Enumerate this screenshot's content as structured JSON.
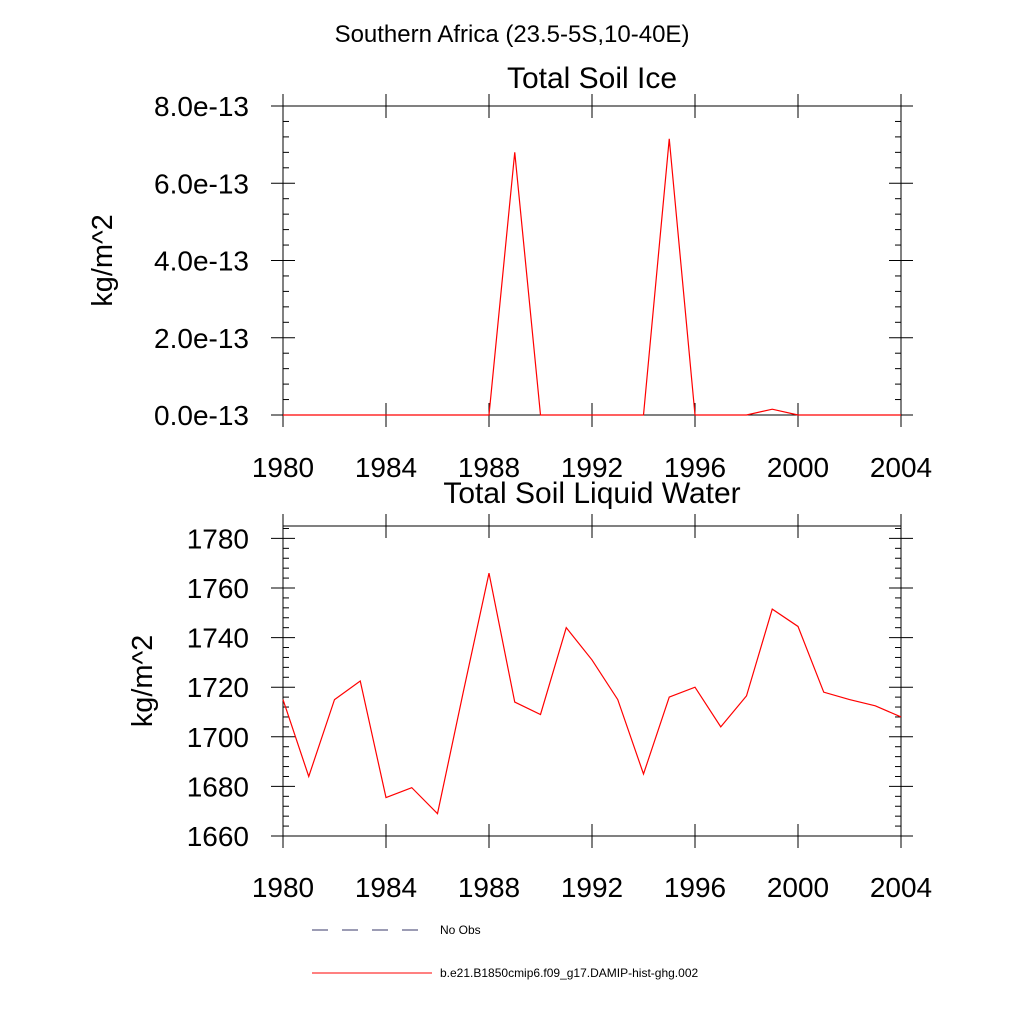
{
  "figure": {
    "suptitle": "Southern Africa (23.5-5S,10-40E)",
    "legend": [
      {
        "label": "No Obs",
        "color": "#3a3a6a",
        "style": "dashed"
      },
      {
        "label": "b.e21.B1850cmip6.f09_g17.DAMIP-hist-ghg.002",
        "color": "#ff0000",
        "style": "solid"
      }
    ]
  },
  "chart_data": [
    {
      "type": "line",
      "title": "Total Soil Ice",
      "xlabel": "",
      "ylabel": "kg/m^2",
      "xlim": [
        1980,
        2004
      ],
      "ylim": [
        0,
        8e-13
      ],
      "xticks": [
        1980,
        1984,
        1988,
        1992,
        1996,
        2000,
        2004
      ],
      "xtick_labels": [
        "1980",
        "1984",
        "1988",
        "1992",
        "1996",
        "2000",
        "2004"
      ],
      "yticks": [
        0,
        2e-13,
        4e-13,
        6e-13,
        8e-13
      ],
      "ytick_labels": [
        "0.0e-13",
        "2.0e-13",
        "4.0e-13",
        "6.0e-13",
        "8.0e-13"
      ],
      "grid": false,
      "series": [
        {
          "name": "b.e21.B1850cmip6.f09_g17.DAMIP-hist-ghg.002",
          "color": "#ff0000",
          "x": [
            1980,
            1981,
            1982,
            1983,
            1984,
            1985,
            1986,
            1987,
            1988,
            1989,
            1990,
            1991,
            1992,
            1993,
            1994,
            1995,
            1996,
            1997,
            1998,
            1999,
            2000,
            2001,
            2002,
            2003,
            2004
          ],
          "values": [
            0,
            0,
            0,
            0,
            0,
            0,
            0,
            0,
            0,
            6.8e-13,
            0,
            0,
            0,
            0,
            0,
            7.15e-13,
            0,
            0,
            0,
            1.5e-14,
            0,
            0,
            0,
            0,
            0
          ]
        }
      ]
    },
    {
      "type": "line",
      "title": "Total Soil Liquid Water",
      "xlabel": "",
      "ylabel": "kg/m^2",
      "xlim": [
        1980,
        2004
      ],
      "ylim": [
        1660,
        1785
      ],
      "xticks": [
        1980,
        1984,
        1988,
        1992,
        1996,
        2000,
        2004
      ],
      "xtick_labels": [
        "1980",
        "1984",
        "1988",
        "1992",
        "1996",
        "2000",
        "2004"
      ],
      "yticks": [
        1660,
        1680,
        1700,
        1720,
        1740,
        1760,
        1780
      ],
      "ytick_labels": [
        "1660",
        "1680",
        "1700",
        "1720",
        "1740",
        "1760",
        "1780"
      ],
      "grid": false,
      "series": [
        {
          "name": "b.e21.B1850cmip6.f09_g17.DAMIP-hist-ghg.002",
          "color": "#ff0000",
          "x": [
            1980,
            1981,
            1982,
            1983,
            1984,
            1985,
            1986,
            1987,
            1988,
            1989,
            1990,
            1991,
            1992,
            1993,
            1994,
            1995,
            1996,
            1997,
            1998,
            1999,
            2000,
            2001,
            2002,
            2003,
            2004
          ],
          "values": [
            1715,
            1684,
            1715,
            1722.5,
            1675.5,
            1679.5,
            1669,
            1718,
            1766,
            1714,
            1709,
            1744,
            1731,
            1715,
            1685,
            1716,
            1720,
            1704,
            1716.5,
            1751.5,
            1744.5,
            1718,
            1715,
            1712.5,
            1708
          ]
        }
      ]
    }
  ]
}
